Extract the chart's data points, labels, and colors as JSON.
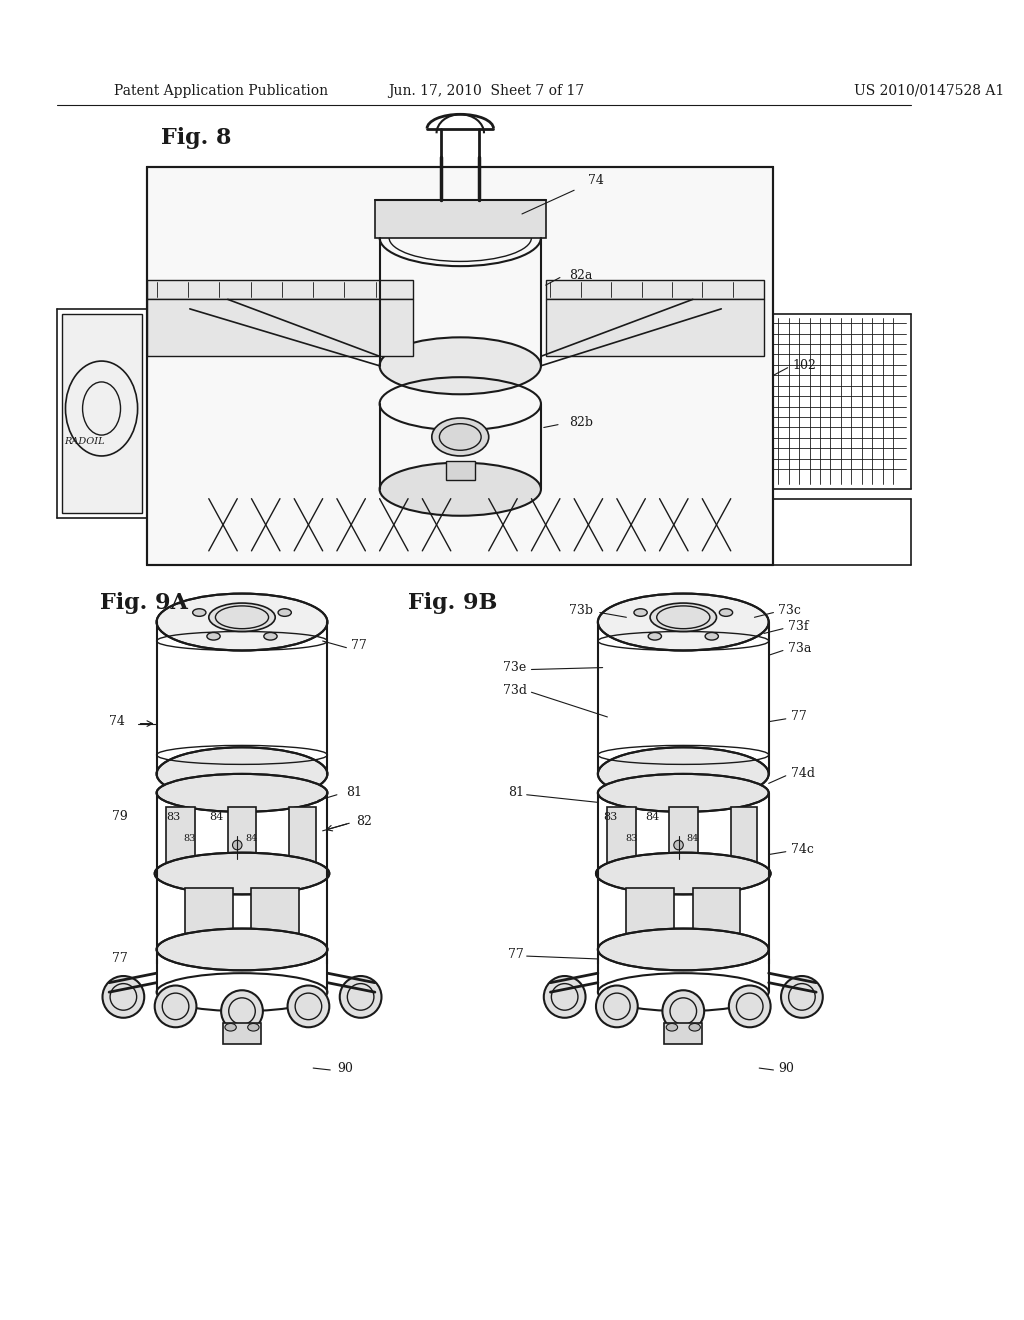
{
  "background_color": "#ffffff",
  "header_left": "Patent Application Publication",
  "header_center": "Jun. 17, 2010  Sheet 7 of 17",
  "header_right": "US 2010/0147528 A1",
  "header_font_size": 10,
  "fig8_label": "Fig. 8",
  "fig9a_label": "Fig. 9A",
  "fig9b_label": "Fig. 9B",
  "line_color": "#1a1a1a",
  "text_color": "#1a1a1a",
  "label_font_size": 12,
  "fig_label_font_size": 14
}
